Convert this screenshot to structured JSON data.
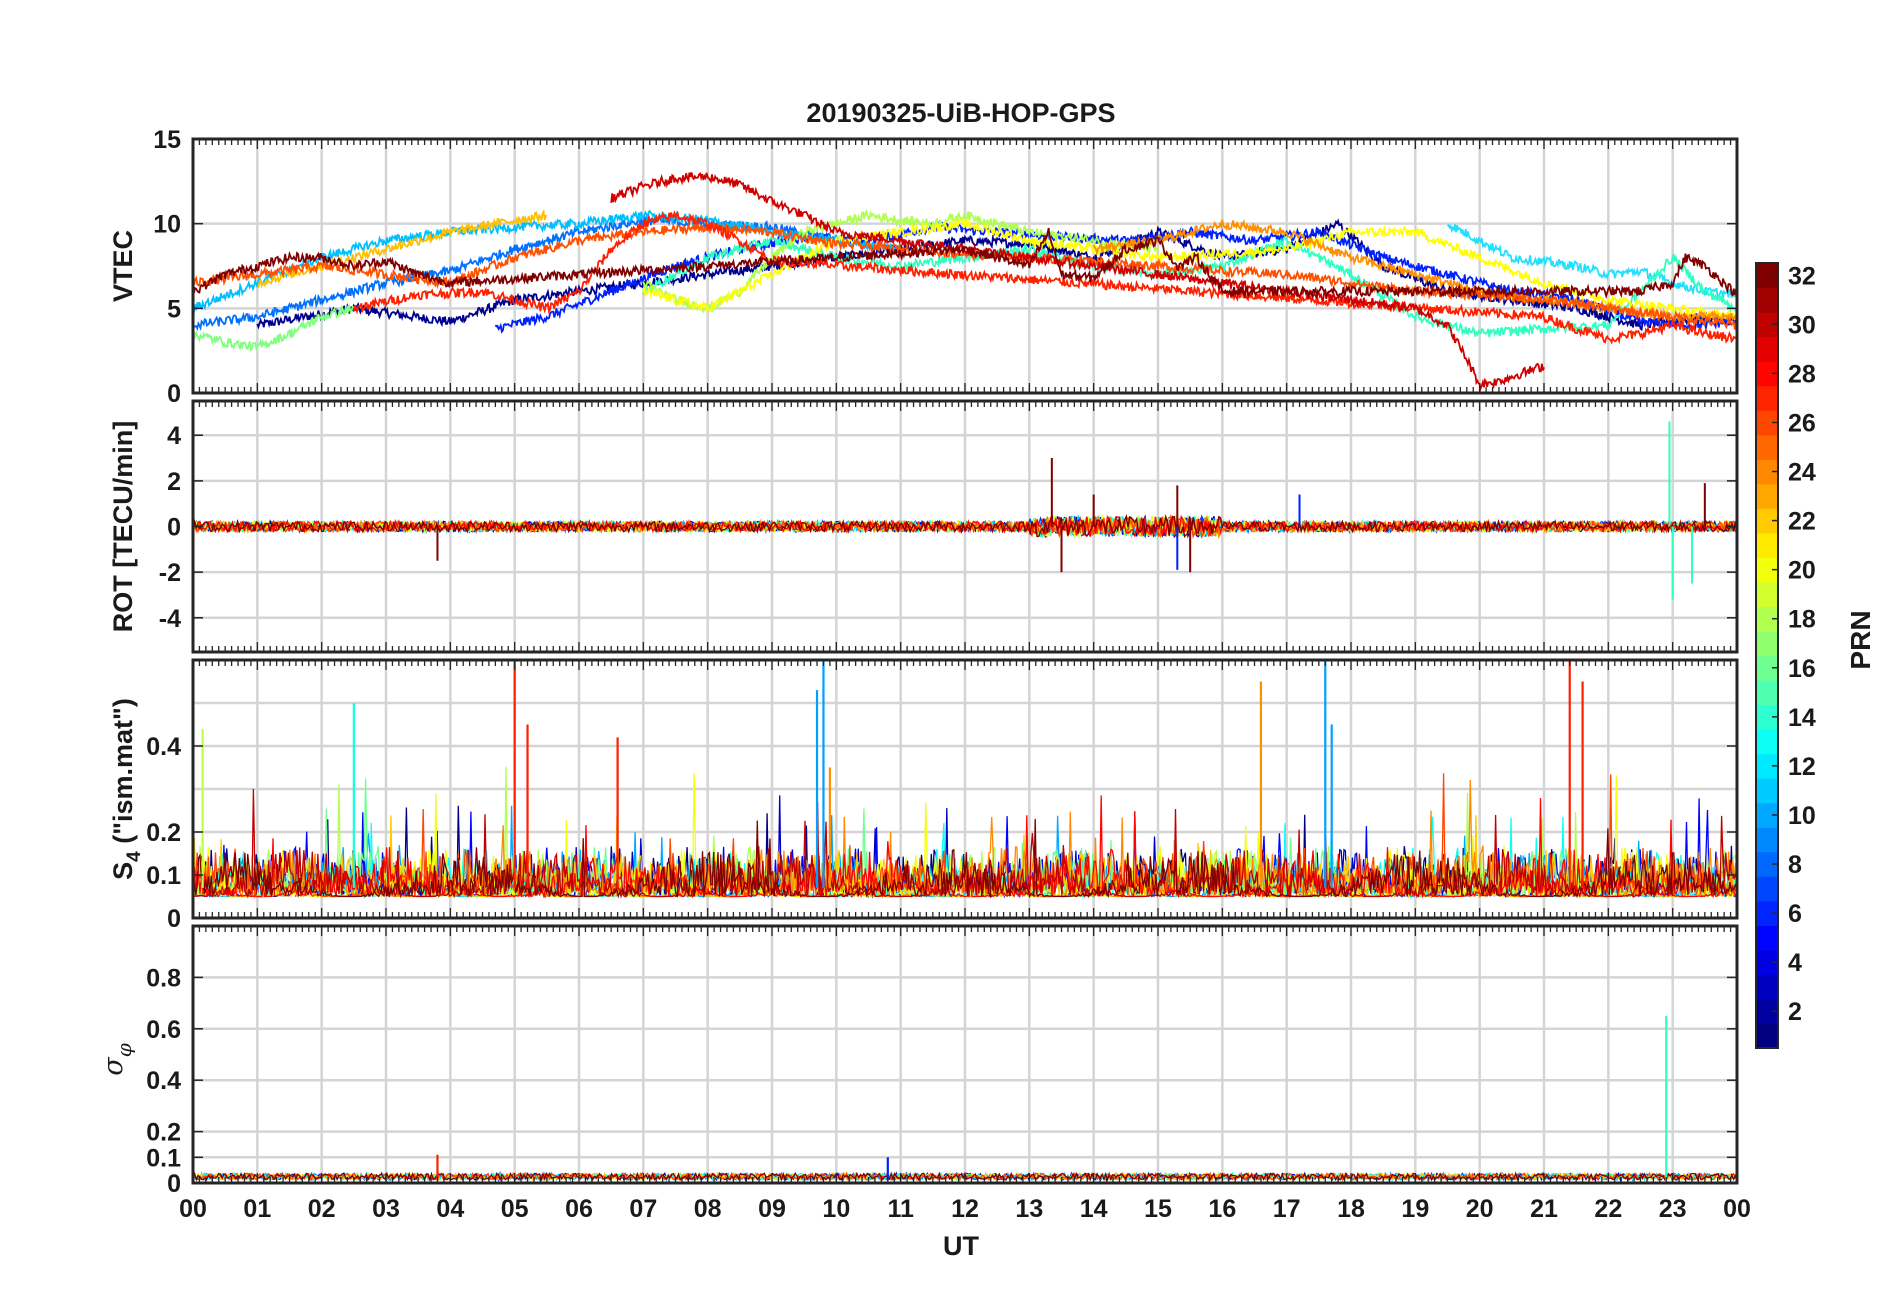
{
  "chart_data": {
    "type": "line",
    "title": "20190325-UiB-HOP-GPS",
    "xlabel": "UT",
    "x_range_hours": [
      0,
      24
    ],
    "x_tick_labels": [
      "00",
      "01",
      "02",
      "03",
      "04",
      "05",
      "06",
      "07",
      "08",
      "09",
      "10",
      "11",
      "12",
      "13",
      "14",
      "15",
      "16",
      "17",
      "18",
      "19",
      "20",
      "21",
      "22",
      "23",
      "00"
    ],
    "colorbar": {
      "label": "PRN",
      "range": [
        1,
        32
      ],
      "tick_labels": [
        "2",
        "4",
        "6",
        "8",
        "10",
        "12",
        "14",
        "16",
        "18",
        "20",
        "22",
        "24",
        "26",
        "28",
        "30",
        "32"
      ],
      "colormap": "jet"
    },
    "panels": [
      {
        "id": "vtec",
        "ylabel": "VTEC",
        "ylim": [
          0,
          15
        ],
        "yticks": [
          0,
          5,
          10,
          15
        ],
        "y_tick_labels": [
          "0",
          "5",
          "10",
          "15"
        ],
        "series": [
          {
            "prn": 1,
            "color": "#00008f",
            "x": [
              1.0,
              2.5,
              4.0,
              5.0,
              6.0,
              7.0,
              8.0,
              9.0,
              10.0,
              11.0,
              12.0,
              13.0,
              14.0,
              15.0,
              16.0,
              17.0,
              17.8,
              18.5,
              19.5,
              20.5,
              21.5,
              22.5,
              23.5,
              24.0
            ],
            "y": [
              4.0,
              5.0,
              4.2,
              5.5,
              6.0,
              6.5,
              7.0,
              7.5,
              8.0,
              8.5,
              9.0,
              8.8,
              8.0,
              9.5,
              8.0,
              8.5,
              10.0,
              7.5,
              6.0,
              5.5,
              5.0,
              4.0,
              4.5,
              4.2
            ]
          },
          {
            "prn": 3,
            "color": "#0020ff",
            "x": [
              4.7,
              5.5,
              6.5,
              7.5,
              8.5,
              9.5,
              10.5,
              11.5,
              12.5,
              13.5,
              14.5,
              15.5,
              16.5,
              17.5,
              18.5,
              19.5,
              20.5,
              21.5,
              22.5,
              23.5,
              24.0
            ],
            "y": [
              3.8,
              4.5,
              6.0,
              7.5,
              8.5,
              9.2,
              9.0,
              9.8,
              9.5,
              9.2,
              9.0,
              9.5,
              9.0,
              9.5,
              8.0,
              7.0,
              6.0,
              5.5,
              4.2,
              4.0,
              4.3
            ]
          },
          {
            "prn": 7,
            "color": "#0070ff",
            "x": [
              0.0,
              1.0,
              2.0,
              3.0,
              4.0,
              5.0,
              6.0,
              7.0,
              8.0,
              9.0,
              10.0
            ],
            "y": [
              4.0,
              4.5,
              5.5,
              6.5,
              7.2,
              8.5,
              9.5,
              10.2,
              10.0,
              9.8,
              9.0
            ]
          },
          {
            "prn": 11,
            "color": "#00bfff",
            "x": [
              0.0,
              1.0,
              2.0,
              3.0,
              4.0,
              5.0,
              6.0,
              7.0,
              8.0,
              9.0,
              10.0,
              11.0
            ],
            "y": [
              5.0,
              6.5,
              8.0,
              9.0,
              9.5,
              9.8,
              10.0,
              10.5,
              10.2,
              9.5,
              9.0,
              8.5
            ]
          },
          {
            "prn": 12,
            "color": "#20dfff",
            "x": [
              19.5,
              20.5,
              21.5,
              22.0,
              22.5,
              23.0,
              23.5,
              24.0
            ],
            "y": [
              10.0,
              8.0,
              7.5,
              7.0,
              7.2,
              6.5,
              6.0,
              5.8
            ]
          },
          {
            "prn": 14,
            "color": "#30ffc0",
            "x": [
              7.0,
              8.0,
              9.0,
              10.0,
              11.0,
              12.0,
              13.0,
              14.0,
              15.0,
              16.0,
              17.0,
              18.0,
              19.0,
              20.0,
              21.0,
              22.0,
              23.0,
              23.5,
              24.0
            ],
            "y": [
              6.0,
              8.0,
              9.0,
              8.0,
              7.5,
              8.0,
              8.5,
              7.5,
              7.0,
              7.5,
              9.0,
              7.0,
              4.5,
              3.5,
              3.8,
              4.0,
              8.0,
              6.0,
              5.0
            ]
          },
          {
            "prn": 17,
            "color": "#80ff7f",
            "x": [
              0.0,
              0.5,
              1.0,
              1.5,
              2.0,
              2.5
            ],
            "y": [
              3.5,
              3.0,
              2.7,
              3.5,
              4.5,
              5.0
            ]
          },
          {
            "prn": 18,
            "color": "#afff50",
            "x": [
              7.0,
              7.5,
              8.0,
              8.5,
              9.0,
              9.5,
              10.0,
              10.5,
              11.0,
              11.5,
              12.0,
              12.5,
              13.0,
              14.0,
              15.0
            ],
            "y": [
              6.5,
              5.5,
              5.0,
              6.0,
              8.0,
              9.5,
              10.0,
              10.5,
              10.2,
              10.0,
              10.5,
              10.0,
              9.5,
              9.0,
              8.5
            ]
          },
          {
            "prn": 20,
            "color": "#ffff00",
            "x": [
              7.0,
              8.0,
              9.0,
              10.0,
              11.0,
              12.0,
              13.0,
              14.0,
              15.0,
              16.0,
              17.0,
              18.0,
              19.0,
              20.0,
              21.0,
              22.0,
              23.0,
              24.0
            ],
            "y": [
              6.0,
              5.0,
              7.0,
              9.0,
              9.5,
              10.0,
              9.0,
              8.5,
              8.0,
              8.2,
              8.5,
              9.5,
              9.5,
              8.0,
              6.5,
              5.5,
              5.0,
              4.5
            ]
          },
          {
            "prn": 22,
            "color": "#ffbf00",
            "x": [
              1.0,
              2.0,
              3.0,
              4.0,
              5.0,
              5.5
            ],
            "y": [
              6.5,
              7.5,
              8.5,
              9.5,
              10.2,
              10.5
            ]
          },
          {
            "prn": 24,
            "color": "#ff8f00",
            "x": [
              14.0,
              15.0,
              16.0,
              17.0,
              18.0,
              19.0,
              20.0,
              21.0,
              22.0,
              23.0,
              24.0
            ],
            "y": [
              8.5,
              9.0,
              10.0,
              9.5,
              8.0,
              7.0,
              6.0,
              5.5,
              5.0,
              4.5,
              4.5
            ]
          },
          {
            "prn": 26,
            "color": "#ff5000",
            "x": [
              0.0,
              1.0,
              2.0,
              3.0,
              4.0,
              5.0,
              6.0,
              7.0,
              8.0,
              9.0,
              10.0,
              11.0,
              12.0,
              13.0,
              14.0,
              15.0,
              16.0,
              17.0,
              18.0,
              19.0,
              20.0,
              21.0,
              22.0,
              23.0,
              24.0
            ],
            "y": [
              6.5,
              7.0,
              7.5,
              7.0,
              6.5,
              8.0,
              9.0,
              9.5,
              9.8,
              9.5,
              8.8,
              8.5,
              8.2,
              8.0,
              7.8,
              7.5,
              7.2,
              7.0,
              6.5,
              6.0,
              5.8,
              5.5,
              5.0,
              4.5,
              4.0
            ]
          },
          {
            "prn": 28,
            "color": "#ff2000",
            "x": [
              2.5,
              3.5,
              4.5,
              5.0,
              5.5,
              6.0,
              6.5,
              7.0,
              7.5,
              8.0,
              8.5,
              9.0,
              21.0,
              21.5,
              22.0,
              22.5,
              23.0,
              23.5,
              24.0
            ],
            "y": [
              5.0,
              5.8,
              6.0,
              5.5,
              5.0,
              6.0,
              8.5,
              10.0,
              10.5,
              10.0,
              9.0,
              7.8,
              4.5,
              3.8,
              3.2,
              3.5,
              4.0,
              3.5,
              3.2
            ]
          },
          {
            "prn": 30,
            "color": "#cf0000",
            "x": [
              6.5,
              7.0,
              7.5,
              8.0,
              8.5,
              9.0,
              9.5,
              10.0,
              19.0,
              19.5,
              19.8,
              20.0,
              20.3,
              20.6,
              21.0
            ],
            "y": [
              11.5,
              12.2,
              12.7,
              12.8,
              12.3,
              11.3,
              10.5,
              9.5,
              5.0,
              4.0,
              2.0,
              0.5,
              0.7,
              1.1,
              1.6
            ]
          },
          {
            "prn": 32,
            "color": "#800000",
            "x": [
              0.0,
              0.5,
              1.0,
              1.5,
              2.0,
              2.5,
              3.0,
              3.5,
              4.0,
              12.0,
              12.5,
              13.0,
              13.3,
              13.5,
              14.0,
              14.5,
              15.0,
              15.3,
              15.6,
              16.0,
              22.5,
              23.0,
              23.2,
              23.5,
              24.0
            ],
            "y": [
              6.0,
              7.0,
              7.5,
              8.0,
              8.0,
              7.5,
              7.8,
              7.0,
              6.5,
              8.5,
              8.0,
              7.5,
              9.5,
              7.0,
              6.8,
              8.5,
              9.0,
              7.5,
              8.0,
              6.0,
              6.0,
              6.5,
              8.0,
              7.5,
              5.8
            ]
          }
        ]
      },
      {
        "id": "rot",
        "ylabel": "ROT [TECU/min]",
        "ylim": [
          -5.5,
          5.5
        ],
        "yticks": [
          -4,
          -2,
          0,
          2,
          4
        ],
        "y_tick_labels": [
          "-4",
          "-2",
          "0",
          "2",
          "4"
        ],
        "baseline": 0,
        "spikes": [
          {
            "prn": 32,
            "color": "#800000",
            "x": [
              13.35,
              13.5,
              14.0,
              15.3,
              15.5,
              3.8,
              23.5
            ],
            "y": [
              3.0,
              -2.0,
              1.4,
              1.8,
              -2.0,
              -1.5,
              1.9
            ]
          },
          {
            "prn": 14,
            "color": "#30ffc0",
            "x": [
              22.95,
              23.0,
              23.3
            ],
            "y": [
              4.6,
              -3.2,
              -2.5
            ]
          },
          {
            "prn": 3,
            "color": "#0020ff",
            "x": [
              15.3,
              17.2
            ],
            "y": [
              -1.9,
              1.4
            ]
          }
        ]
      },
      {
        "id": "s4",
        "ylabel": "S_4 (\"ism.mat\")",
        "ylim": [
          0,
          0.6
        ],
        "yticks": [
          0,
          0.1,
          0.2,
          0.4
        ],
        "y_tick_labels": [
          "0",
          "0.1",
          "0.2",
          "0.4"
        ],
        "gridlines": [
          0,
          0.1,
          0.2,
          0.3,
          0.4,
          0.5
        ],
        "background_level": 0.1,
        "peaks": [
          {
            "prn": 28,
            "color": "#ff2000",
            "x": [
              5.0,
              5.2,
              6.6,
              21.4,
              21.6
            ],
            "y": [
              0.6,
              0.45,
              0.42,
              0.6,
              0.55
            ]
          },
          {
            "prn": 10,
            "color": "#00a0ff",
            "x": [
              9.7,
              9.8,
              17.6,
              17.7
            ],
            "y": [
              0.53,
              0.6,
              0.6,
              0.45
            ]
          },
          {
            "prn": 24,
            "color": "#ff8f00",
            "x": [
              16.6,
              9.9
            ],
            "y": [
              0.55,
              0.35
            ]
          },
          {
            "prn": 13,
            "color": "#10ffe0",
            "x": [
              2.5
            ],
            "y": [
              0.5
            ]
          },
          {
            "prn": 18,
            "color": "#c0ff40",
            "x": [
              0.15
            ],
            "y": [
              0.44
            ]
          }
        ]
      },
      {
        "id": "sigma_phi",
        "ylabel": "σ_φ",
        "ylim": [
          0,
          1
        ],
        "yticks": [
          0,
          0.1,
          0.2,
          0.4,
          0.6,
          0.8
        ],
        "y_tick_labels": [
          "0",
          "0.1",
          "0.2",
          "0.4",
          "0.6",
          "0.8"
        ],
        "gridlines": [
          0,
          0.1,
          0.2,
          0.4,
          0.6,
          0.8
        ],
        "baseline_level": 0.02,
        "spikes": [
          {
            "prn": 14,
            "color": "#30ffc0",
            "x": [
              22.9
            ],
            "y": [
              0.65
            ]
          },
          {
            "prn": 28,
            "color": "#ff2000",
            "x": [
              3.8
            ],
            "y": [
              0.11
            ]
          },
          {
            "prn": 3,
            "color": "#0020ff",
            "x": [
              10.8
            ],
            "y": [
              0.1
            ]
          }
        ]
      }
    ]
  }
}
